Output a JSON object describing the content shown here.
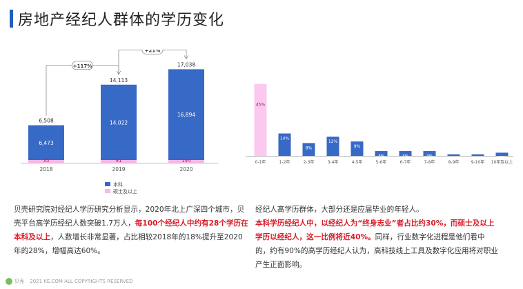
{
  "header": {
    "title": "房地产经纪人群体的学历变化"
  },
  "chart_data": [
    {
      "type": "bar",
      "categories": [
        "2018",
        "2019",
        "2020"
      ],
      "series": [
        {
          "name": "本科",
          "values": [
            6473,
            14022,
            16894
          ],
          "color": "#3769c6"
        },
        {
          "name": "硕士及以上",
          "values": [
            35,
            91,
            144
          ],
          "color": "#f7b8e8"
        }
      ],
      "totals": [
        6508,
        14113,
        17038
      ],
      "growth_labels": [
        "+117%",
        "+21%"
      ],
      "ylim": [
        0,
        19000
      ],
      "legend_position": "bottom"
    },
    {
      "type": "bar",
      "categories": [
        "0-1年",
        "1-2年",
        "2-3年",
        "3-4年",
        "4-5年",
        "5-6年",
        "6-7年",
        "7-8年",
        "8-9年",
        "9-10年",
        "10年及以上"
      ],
      "values": [
        45,
        14,
        8,
        12,
        9,
        3,
        3,
        3,
        1,
        1,
        2
      ],
      "value_labels": [
        "45%",
        "14%",
        "8%",
        "12%",
        "9%",
        "3%",
        "3%",
        "3%",
        "1%",
        "1%",
        "2%"
      ],
      "highlight_color": "#fbc9ef",
      "bar_color": "#3769c6",
      "ylim": [
        0,
        50
      ]
    }
  ],
  "left_text": {
    "p1": "贝壳研究院对经纪人学历研究分析显示，2020年北上广深四个城市，贝壳平台高学历经纪人数突破1.7万人，",
    "hl1": "每100个经纪人中约有28个学历在本科及以上",
    "p2": "，人数增长非常显著，占比相较2018年的18%提升至2020年的28%，增幅高达60%。"
  },
  "right_text": {
    "p1": "经纪人高学历群体，大部分还是应届毕业的年轻人。",
    "hl1": "本科学历经纪人中，以经纪人为“终身志业”者占比约30%，而硕士及以上学历以经纪人，这一比例将近40%。",
    "p2": "同样，行业数字化进程是他们看中的，约有90%的高学历经纪人认为，高科技线上工具及数字化应用将对职业产生正面影响。"
  },
  "footer": {
    "logo_text": "贝壳",
    "copyright": "2021 KE.COM ALL COPYRIGHTS  RESERVED"
  }
}
